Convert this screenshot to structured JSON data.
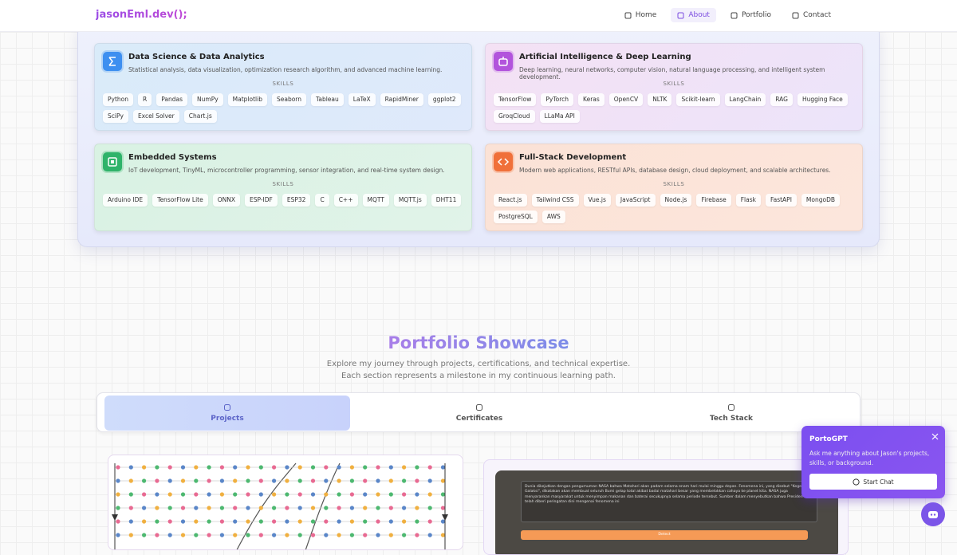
{
  "nav": {
    "brand": "jasonEml.dev();",
    "links": [
      "Home",
      "About",
      "Portfolio",
      "Contact"
    ]
  },
  "skills_panel": {
    "cards": [
      {
        "title": "Data Science & Data Analytics",
        "description": "Statistical analysis, data visualization, optimization research algorithm, and advanced machine learning.",
        "skills_label": "SKILLS",
        "skills": [
          "Python",
          "R",
          "Pandas",
          "NumPy",
          "Matplotlib",
          "Seaborn",
          "Tableau",
          "LaTeX",
          "RapidMiner",
          "ggplot2",
          "SciPy",
          "Excel Solver",
          "Chart.js"
        ]
      },
      {
        "title": "Artificial Intelligence & Deep Learning",
        "description": "Deep learning, neural networks, computer vision, natural language processing, and intelligent system development.",
        "skills_label": "SKILLS",
        "skills": [
          "TensorFlow",
          "PyTorch",
          "Keras",
          "OpenCV",
          "NLTK",
          "Scikit-learn",
          "LangChain",
          "RAG",
          "Hugging Face",
          "GroqCloud",
          "LLaMa API"
        ]
      },
      {
        "title": "Embedded Systems",
        "description": "IoT development, TinyML, microcontroller programming, sensor integration, and real-time system design.",
        "skills_label": "SKILLS",
        "skills": [
          "Arduino IDE",
          "TensorFlow Lite",
          "ONNX",
          "ESP-IDF",
          "ESP32",
          "C",
          "C++",
          "MQTT",
          "MQTT.js",
          "DHT11"
        ]
      },
      {
        "title": "Full-Stack Development",
        "description": "Modern web applications, RESTful APIs, database design, cloud deployment, and scalable architectures.",
        "skills_label": "SKILLS",
        "skills": [
          "React.js",
          "Tailwind CSS",
          "Vue.js",
          "JavaScript",
          "Node.js",
          "Firebase",
          "Flask",
          "FastAPI",
          "MongoDB",
          "PostgreSQL",
          "AWS"
        ]
      }
    ]
  },
  "portfolio": {
    "title": "Portfolio Showcase",
    "subtitle": "Explore my journey through projects, certifications, and technical expertise. Each section represents a milestone in my continuous learning path.",
    "tabs": [
      "Projects",
      "Certificates",
      "Tech Stack"
    ]
  },
  "projects": [
    {
      "text": "Dunia dikejutkan dengan pengumuman NASA bahwa Matahari akan padam selama enam hari mulai minggu depan. Fenomena ini, yang disebut \"Kegelapan Galaksi\", dikatakan akan membuat seluruh Bumi gelap total akibat badai matahari besar yang membelokkan cahaya ke planet kita. NASA juga menyarankan masyarakat untuk menyimpan makanan dan baterai secukupnya selama periode tersebut. Sumber dalam menyebutkan bahwa Presiden AS telah diberi peringatan dini mengenai fenomena ini",
      "button": "Detect"
    }
  ],
  "chat": {
    "title": "PortoGPT",
    "message": "Ask me anything about Jason's projects, skills, or background.",
    "button": "Start Chat"
  }
}
